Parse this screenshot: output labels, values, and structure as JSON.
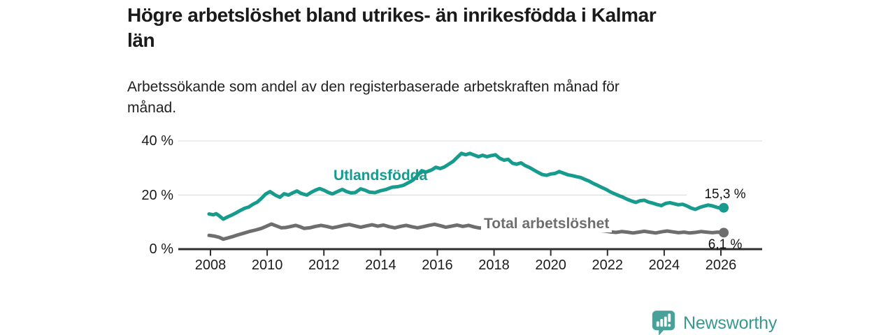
{
  "header": {
    "title": "Högre arbetslöshet bland utrikes- än inrikesfödda i Kalmar\nlän",
    "subtitle": "Arbetssökande som andel av den registerbaserade arbetskraften månad för\nmånad."
  },
  "chart_data": {
    "type": "line",
    "title": "Högre arbetslöshet bland utrikes- än inrikesfödda i Kalmar län",
    "subtitle": "Arbetssökande som andel av den registerbaserade arbetskraften månad för månad.",
    "xlabel": "",
    "ylabel": "",
    "grid": "horizontal",
    "legend": "inline-labels",
    "colors": {
      "utlandsfodda": "#169b8d",
      "total": "#6e6e6e",
      "axis": "#2e2e2e",
      "gridline": "#d8d8d8"
    },
    "x_axis": {
      "ticks": [
        2008,
        2010,
        2012,
        2014,
        2016,
        2018,
        2020,
        2022,
        2024,
        2026
      ],
      "range": [
        2006.9,
        2027.5
      ]
    },
    "y_axis": {
      "ticks": [
        "0 %",
        "20 %",
        "40 %"
      ],
      "tick_values": [
        0,
        20,
        40
      ],
      "range": [
        0,
        42
      ]
    },
    "series": [
      {
        "name": "Utlandsfödda",
        "color": "#169b8d",
        "end_label": "15,3 %",
        "end_value": 15.3,
        "points": [
          [
            2007.95,
            13.0
          ],
          [
            2008.1,
            12.7
          ],
          [
            2008.2,
            13.1
          ],
          [
            2008.3,
            12.4
          ],
          [
            2008.45,
            11.1
          ],
          [
            2008.6,
            11.9
          ],
          [
            2008.75,
            12.6
          ],
          [
            2008.9,
            13.4
          ],
          [
            2009.05,
            14.3
          ],
          [
            2009.2,
            15.1
          ],
          [
            2009.35,
            15.6
          ],
          [
            2009.5,
            16.6
          ],
          [
            2009.65,
            17.4
          ],
          [
            2009.8,
            18.8
          ],
          [
            2009.95,
            20.4
          ],
          [
            2010.1,
            21.3
          ],
          [
            2010.3,
            19.9
          ],
          [
            2010.45,
            19.2
          ],
          [
            2010.6,
            20.5
          ],
          [
            2010.75,
            20.0
          ],
          [
            2010.9,
            20.8
          ],
          [
            2011.05,
            21.5
          ],
          [
            2011.2,
            20.6
          ],
          [
            2011.4,
            20.0
          ],
          [
            2011.55,
            21.0
          ],
          [
            2011.7,
            21.8
          ],
          [
            2011.85,
            22.4
          ],
          [
            2012.0,
            21.8
          ],
          [
            2012.15,
            21.0
          ],
          [
            2012.3,
            20.4
          ],
          [
            2012.5,
            21.4
          ],
          [
            2012.65,
            22.1
          ],
          [
            2012.8,
            21.3
          ],
          [
            2012.95,
            20.8
          ],
          [
            2013.1,
            20.9
          ],
          [
            2013.3,
            22.3
          ],
          [
            2013.45,
            21.8
          ],
          [
            2013.6,
            21.1
          ],
          [
            2013.8,
            20.9
          ],
          [
            2014.0,
            21.6
          ],
          [
            2014.2,
            22.1
          ],
          [
            2014.4,
            22.9
          ],
          [
            2014.6,
            23.1
          ],
          [
            2014.8,
            23.6
          ],
          [
            2015.0,
            24.7
          ],
          [
            2015.15,
            25.6
          ],
          [
            2015.3,
            27.2
          ],
          [
            2015.45,
            29.0
          ],
          [
            2015.6,
            28.5
          ],
          [
            2015.8,
            29.3
          ],
          [
            2015.95,
            30.3
          ],
          [
            2016.1,
            29.8
          ],
          [
            2016.25,
            30.4
          ],
          [
            2016.4,
            31.4
          ],
          [
            2016.55,
            32.4
          ],
          [
            2016.7,
            33.9
          ],
          [
            2016.85,
            35.4
          ],
          [
            2017.0,
            34.9
          ],
          [
            2017.15,
            35.4
          ],
          [
            2017.3,
            34.8
          ],
          [
            2017.45,
            34.2
          ],
          [
            2017.6,
            34.7
          ],
          [
            2017.75,
            34.2
          ],
          [
            2017.9,
            34.6
          ],
          [
            2018.05,
            34.9
          ],
          [
            2018.2,
            33.6
          ],
          [
            2018.35,
            32.9
          ],
          [
            2018.5,
            33.2
          ],
          [
            2018.65,
            31.8
          ],
          [
            2018.8,
            31.4
          ],
          [
            2018.95,
            31.9
          ],
          [
            2019.1,
            30.9
          ],
          [
            2019.25,
            30.2
          ],
          [
            2019.4,
            29.3
          ],
          [
            2019.55,
            28.4
          ],
          [
            2019.7,
            27.6
          ],
          [
            2019.85,
            27.3
          ],
          [
            2020.0,
            27.8
          ],
          [
            2020.15,
            28.0
          ],
          [
            2020.3,
            28.7
          ],
          [
            2020.45,
            28.1
          ],
          [
            2020.6,
            27.5
          ],
          [
            2020.75,
            27.2
          ],
          [
            2020.9,
            26.8
          ],
          [
            2021.05,
            26.5
          ],
          [
            2021.2,
            25.8
          ],
          [
            2021.35,
            25.2
          ],
          [
            2021.5,
            24.3
          ],
          [
            2021.65,
            23.6
          ],
          [
            2021.8,
            22.8
          ],
          [
            2021.95,
            22.1
          ],
          [
            2022.1,
            21.2
          ],
          [
            2022.25,
            20.5
          ],
          [
            2022.4,
            19.8
          ],
          [
            2022.55,
            19.2
          ],
          [
            2022.7,
            18.4
          ],
          [
            2022.85,
            17.8
          ],
          [
            2023.0,
            17.3
          ],
          [
            2023.15,
            17.9
          ],
          [
            2023.3,
            18.1
          ],
          [
            2023.45,
            17.4
          ],
          [
            2023.6,
            17.0
          ],
          [
            2023.75,
            16.5
          ],
          [
            2023.9,
            16.1
          ],
          [
            2024.05,
            16.9
          ],
          [
            2024.2,
            17.2
          ],
          [
            2024.35,
            16.8
          ],
          [
            2024.5,
            16.4
          ],
          [
            2024.65,
            16.6
          ],
          [
            2024.8,
            16.0
          ],
          [
            2024.95,
            15.2
          ],
          [
            2025.1,
            14.7
          ],
          [
            2025.25,
            15.4
          ],
          [
            2025.4,
            15.9
          ],
          [
            2025.55,
            16.3
          ],
          [
            2025.7,
            16.0
          ],
          [
            2025.85,
            15.5
          ],
          [
            2026.0,
            15.1
          ],
          [
            2026.1,
            15.3
          ]
        ]
      },
      {
        "name": "Total arbetslöshet",
        "color": "#6e6e6e",
        "end_label": "6,1 %",
        "end_value": 6.1,
        "points": [
          [
            2007.95,
            5.1
          ],
          [
            2008.15,
            4.8
          ],
          [
            2008.3,
            4.4
          ],
          [
            2008.45,
            3.7
          ],
          [
            2008.6,
            4.1
          ],
          [
            2008.8,
            4.7
          ],
          [
            2009.0,
            5.4
          ],
          [
            2009.2,
            6.0
          ],
          [
            2009.4,
            6.6
          ],
          [
            2009.6,
            7.1
          ],
          [
            2009.8,
            7.7
          ],
          [
            2010.0,
            8.6
          ],
          [
            2010.15,
            9.3
          ],
          [
            2010.3,
            8.7
          ],
          [
            2010.5,
            7.9
          ],
          [
            2010.65,
            8.0
          ],
          [
            2010.8,
            8.3
          ],
          [
            2011.0,
            8.8
          ],
          [
            2011.15,
            8.3
          ],
          [
            2011.3,
            7.7
          ],
          [
            2011.5,
            7.9
          ],
          [
            2011.7,
            8.4
          ],
          [
            2011.9,
            8.8
          ],
          [
            2012.1,
            8.4
          ],
          [
            2012.3,
            7.9
          ],
          [
            2012.5,
            8.3
          ],
          [
            2012.7,
            8.8
          ],
          [
            2012.9,
            9.1
          ],
          [
            2013.1,
            8.6
          ],
          [
            2013.3,
            8.1
          ],
          [
            2013.5,
            8.6
          ],
          [
            2013.7,
            9.0
          ],
          [
            2013.9,
            8.5
          ],
          [
            2014.1,
            8.9
          ],
          [
            2014.3,
            8.3
          ],
          [
            2014.5,
            7.9
          ],
          [
            2014.7,
            8.4
          ],
          [
            2014.9,
            8.8
          ],
          [
            2015.1,
            8.3
          ],
          [
            2015.3,
            7.9
          ],
          [
            2015.5,
            8.3
          ],
          [
            2015.7,
            8.8
          ],
          [
            2015.9,
            9.2
          ],
          [
            2016.1,
            8.7
          ],
          [
            2016.3,
            8.1
          ],
          [
            2016.5,
            8.5
          ],
          [
            2016.7,
            8.9
          ],
          [
            2016.9,
            8.4
          ],
          [
            2017.1,
            8.8
          ],
          [
            2017.3,
            8.2
          ],
          [
            2017.5,
            7.8
          ],
          [
            2017.7,
            8.2
          ],
          [
            2017.9,
            8.6
          ],
          [
            2018.1,
            8.1
          ],
          [
            2018.3,
            7.7
          ],
          [
            2018.5,
            8.0
          ],
          [
            2018.7,
            7.6
          ],
          [
            2018.9,
            8.0
          ],
          [
            2019.1,
            7.6
          ],
          [
            2019.3,
            7.3
          ],
          [
            2019.5,
            7.7
          ],
          [
            2019.7,
            7.3
          ],
          [
            2019.9,
            7.6
          ],
          [
            2020.1,
            8.0
          ],
          [
            2020.3,
            8.6
          ],
          [
            2020.5,
            8.3
          ],
          [
            2020.7,
            8.0
          ],
          [
            2020.9,
            8.3
          ],
          [
            2021.1,
            7.9
          ],
          [
            2021.3,
            7.5
          ],
          [
            2021.5,
            7.2
          ],
          [
            2021.7,
            6.9
          ],
          [
            2021.9,
            6.7
          ],
          [
            2022.1,
            6.4
          ],
          [
            2022.3,
            6.2
          ],
          [
            2022.5,
            6.5
          ],
          [
            2022.7,
            6.3
          ],
          [
            2022.9,
            6.0
          ],
          [
            2023.1,
            6.3
          ],
          [
            2023.3,
            6.6
          ],
          [
            2023.5,
            6.3
          ],
          [
            2023.7,
            6.0
          ],
          [
            2023.9,
            6.4
          ],
          [
            2024.1,
            6.7
          ],
          [
            2024.3,
            6.4
          ],
          [
            2024.5,
            6.1
          ],
          [
            2024.7,
            6.3
          ],
          [
            2024.9,
            6.0
          ],
          [
            2025.1,
            6.2
          ],
          [
            2025.3,
            6.5
          ],
          [
            2025.5,
            6.3
          ],
          [
            2025.7,
            6.1
          ],
          [
            2025.9,
            6.3
          ],
          [
            2026.1,
            6.1
          ]
        ]
      }
    ]
  },
  "footer": {
    "brand": "Newsworthy",
    "logo_icon": "newsworthy-speech-bubble-bar-chart-icon",
    "brand_color": "#3a988f"
  }
}
